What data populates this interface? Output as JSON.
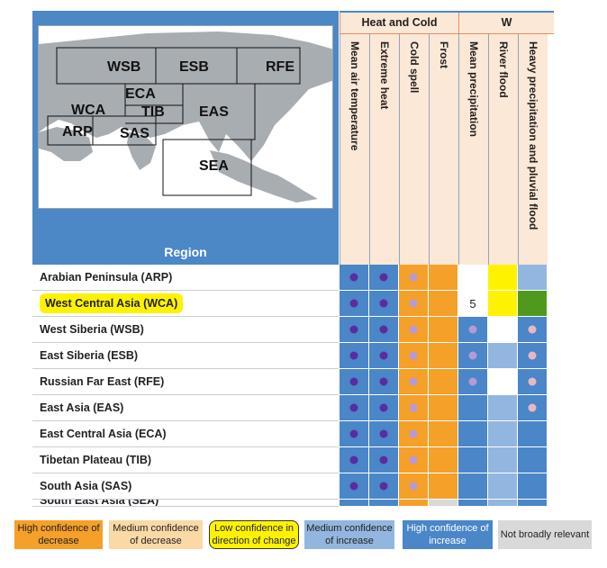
{
  "header": {
    "region_label": "Region",
    "groups": [
      {
        "id": "heat-cold",
        "label": "Heat and Cold"
      },
      {
        "id": "wet-dry",
        "label": "W"
      }
    ],
    "columns": [
      {
        "id": "mean-air-temperature",
        "label": "Mean air temperature",
        "group": "heat-cold"
      },
      {
        "id": "extreme-heat",
        "label": "Extreme heat",
        "group": "heat-cold"
      },
      {
        "id": "cold-spell",
        "label": "Cold spell",
        "group": "heat-cold"
      },
      {
        "id": "frost",
        "label": "Frost",
        "group": "heat-cold"
      },
      {
        "id": "mean-precipitation",
        "label": "Mean precipitation",
        "group": "wet-dry"
      },
      {
        "id": "river-flood",
        "label": "River flood",
        "group": "wet-dry"
      },
      {
        "id": "heavy-precipitation",
        "label": "Heavy precipitation and pluvial flood",
        "group": "wet-dry"
      }
    ]
  },
  "map": {
    "labels": [
      {
        "id": "wsb",
        "text": "WSB"
      },
      {
        "id": "esb",
        "text": "ESB"
      },
      {
        "id": "rfe",
        "text": "RFE"
      },
      {
        "id": "eca",
        "text": "ECA"
      },
      {
        "id": "wca",
        "text": "WCA"
      },
      {
        "id": "tib",
        "text": "TIB"
      },
      {
        "id": "eas",
        "text": "EAS"
      },
      {
        "id": "arp",
        "text": "ARP"
      },
      {
        "id": "sas",
        "text": "SAS"
      },
      {
        "id": "sea",
        "text": "SEA"
      }
    ]
  },
  "colors": {
    "high_decrease": "#f4a029",
    "medium_decrease": "#fbd9a6",
    "low_confidence": "#fff200",
    "medium_increase": "#93b6e0",
    "high_increase": "#4a86c8",
    "not_relevant": "#d9d9d9",
    "dot_purple": "#5b2ca0",
    "dot_lavender": "#b49ad8",
    "dot_pink": "#e8b8c0",
    "panel_blue": "#4c87c6",
    "header_beige": "#fce8d6"
  },
  "rows": [
    {
      "label": "Arabian Peninsula (ARP)",
      "highlight": false,
      "cells": [
        {
          "color": "high_increase",
          "dot": "dot_purple"
        },
        {
          "color": "high_increase",
          "dot": "dot_purple"
        },
        {
          "color": "high_decrease",
          "dot": "dot_lavender"
        },
        {
          "color": "high_decrease",
          "dot": null
        },
        {
          "color": "white",
          "dot": null
        },
        {
          "color": "low_confidence",
          "dot": null
        },
        {
          "color": "medium_increase",
          "dot": null
        }
      ]
    },
    {
      "label": "West Central Asia (WCA)",
      "highlight": true,
      "cells": [
        {
          "color": "high_increase",
          "dot": "dot_purple"
        },
        {
          "color": "high_increase",
          "dot": "dot_purple"
        },
        {
          "color": "high_decrease",
          "dot": "dot_lavender"
        },
        {
          "color": "high_decrease",
          "dot": null
        },
        {
          "color": "white",
          "dot": null,
          "text": "5"
        },
        {
          "color": "low_confidence",
          "dot": null
        },
        {
          "color": "green",
          "dot": null
        }
      ]
    },
    {
      "label": "West Siberia (WSB)",
      "highlight": false,
      "cells": [
        {
          "color": "high_increase",
          "dot": "dot_purple"
        },
        {
          "color": "high_increase",
          "dot": "dot_purple"
        },
        {
          "color": "high_decrease",
          "dot": "dot_lavender"
        },
        {
          "color": "high_decrease",
          "dot": null
        },
        {
          "color": "high_increase",
          "dot": "dot_lavender"
        },
        {
          "color": "white",
          "dot": null
        },
        {
          "color": "high_increase",
          "dot": "dot_pink"
        }
      ]
    },
    {
      "label": "East Siberia (ESB)",
      "highlight": false,
      "cells": [
        {
          "color": "high_increase",
          "dot": "dot_purple"
        },
        {
          "color": "high_increase",
          "dot": "dot_purple"
        },
        {
          "color": "high_decrease",
          "dot": "dot_lavender"
        },
        {
          "color": "high_decrease",
          "dot": null
        },
        {
          "color": "high_increase",
          "dot": "dot_lavender"
        },
        {
          "color": "medium_increase",
          "dot": null
        },
        {
          "color": "high_increase",
          "dot": "dot_pink"
        }
      ]
    },
    {
      "label": "Russian Far East (RFE)",
      "highlight": false,
      "cells": [
        {
          "color": "high_increase",
          "dot": "dot_purple"
        },
        {
          "color": "high_increase",
          "dot": "dot_purple"
        },
        {
          "color": "high_decrease",
          "dot": "dot_lavender"
        },
        {
          "color": "high_decrease",
          "dot": null
        },
        {
          "color": "high_increase",
          "dot": "dot_lavender"
        },
        {
          "color": "white",
          "dot": null
        },
        {
          "color": "high_increase",
          "dot": "dot_pink"
        }
      ]
    },
    {
      "label": "East Asia (EAS)",
      "highlight": false,
      "cells": [
        {
          "color": "high_increase",
          "dot": "dot_purple"
        },
        {
          "color": "high_increase",
          "dot": "dot_purple"
        },
        {
          "color": "high_decrease",
          "dot": "dot_lavender"
        },
        {
          "color": "high_decrease",
          "dot": null
        },
        {
          "color": "high_increase",
          "dot": null
        },
        {
          "color": "medium_increase",
          "dot": null
        },
        {
          "color": "high_increase",
          "dot": "dot_pink"
        }
      ]
    },
    {
      "label": "East Central Asia (ECA)",
      "highlight": false,
      "cells": [
        {
          "color": "high_increase",
          "dot": "dot_purple"
        },
        {
          "color": "high_increase",
          "dot": "dot_purple"
        },
        {
          "color": "high_decrease",
          "dot": "dot_lavender"
        },
        {
          "color": "high_decrease",
          "dot": null
        },
        {
          "color": "high_increase",
          "dot": null
        },
        {
          "color": "medium_increase",
          "dot": null
        },
        {
          "color": "high_increase",
          "dot": null
        }
      ]
    },
    {
      "label": "Tibetan Plateau (TIB)",
      "highlight": false,
      "cells": [
        {
          "color": "high_increase",
          "dot": "dot_purple"
        },
        {
          "color": "high_increase",
          "dot": "dot_purple"
        },
        {
          "color": "high_decrease",
          "dot": "dot_lavender"
        },
        {
          "color": "high_decrease",
          "dot": null
        },
        {
          "color": "high_increase",
          "dot": null
        },
        {
          "color": "medium_increase",
          "dot": null
        },
        {
          "color": "high_increase",
          "dot": null
        }
      ]
    },
    {
      "label": "South Asia (SAS)",
      "highlight": false,
      "cells": [
        {
          "color": "high_increase",
          "dot": "dot_purple"
        },
        {
          "color": "high_increase",
          "dot": "dot_purple"
        },
        {
          "color": "high_decrease",
          "dot": "dot_lavender"
        },
        {
          "color": "high_decrease",
          "dot": null
        },
        {
          "color": "high_increase",
          "dot": null
        },
        {
          "color": "medium_increase",
          "dot": null
        },
        {
          "color": "high_increase",
          "dot": null
        }
      ]
    },
    {
      "label": "South East Asia (SEA)",
      "highlight": false,
      "partial": true,
      "cells": [
        {
          "color": "high_increase",
          "dot": null
        },
        {
          "color": "high_increase",
          "dot": null
        },
        {
          "color": "high_decrease",
          "dot": null
        },
        {
          "color": "not_relevant",
          "dot": null
        },
        {
          "color": "high_increase",
          "dot": null
        },
        {
          "color": "medium_increase",
          "dot": null
        },
        {
          "color": "high_increase",
          "dot": null
        }
      ]
    }
  ],
  "legend": [
    {
      "id": "high-decrease",
      "text": "High confidence of decrease",
      "color": "high_decrease"
    },
    {
      "id": "medium-decrease",
      "text": "Medium confidence of decrease",
      "color": "medium_decrease"
    },
    {
      "id": "low-confidence",
      "text": "Low confidence in direction of change",
      "color": "low_confidence"
    },
    {
      "id": "medium-increase",
      "text": "Medium confidence of increase",
      "color": "medium_increase"
    },
    {
      "id": "high-increase",
      "text": "High confidence of increase",
      "color": "high_increase"
    },
    {
      "id": "not-relevant",
      "text": "Not broadly relevant",
      "color": "not_relevant"
    }
  ]
}
